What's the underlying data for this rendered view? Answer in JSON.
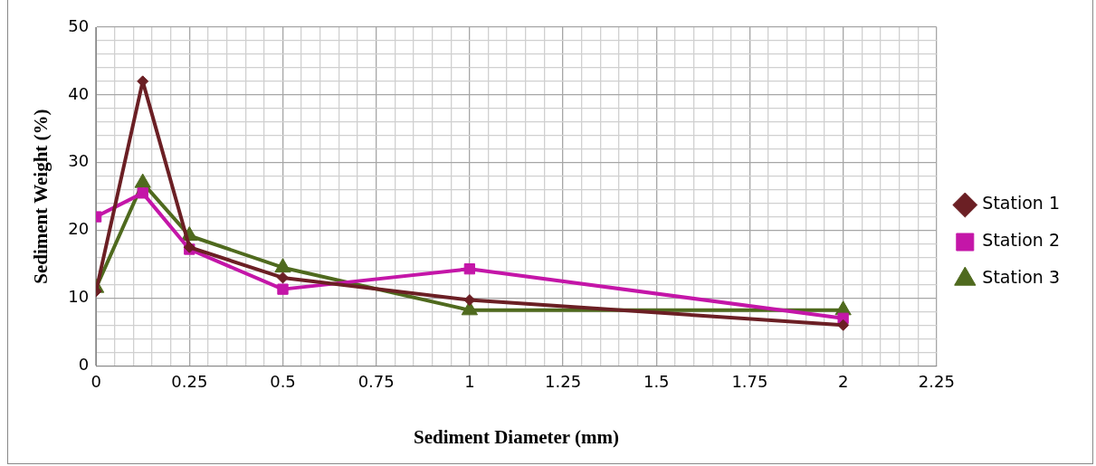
{
  "chart_data": {
    "type": "line",
    "xlabel": "Sediment Diameter (mm)",
    "ylabel": "Sediment Weight (%)",
    "x": [
      0,
      0.125,
      0.25,
      0.5,
      1,
      2
    ],
    "series": [
      {
        "name": "Station 1",
        "color": "#6b1f24",
        "marker": "diamond",
        "values": [
          11,
          42,
          17.5,
          13,
          9.7,
          6
        ]
      },
      {
        "name": "Station 2",
        "color": "#c416a8",
        "marker": "square",
        "values": [
          22,
          25.5,
          17.2,
          11.3,
          14.3,
          7
        ]
      },
      {
        "name": "Station 3",
        "color": "#4f6a1e",
        "marker": "triangle",
        "values": [
          11.5,
          27,
          19.2,
          14.5,
          8.2,
          8.2
        ]
      }
    ],
    "xlim": [
      0,
      2.25
    ],
    "xticks": [
      0,
      {
        "value": 0.05,
        "label": null
      },
      {
        "value": 0.1,
        "label": null
      },
      {
        "value": 0.15,
        "label": null
      },
      {
        "value": 0.2,
        "label": null
      },
      0.25,
      {
        "value": 0.3,
        "label": null
      },
      {
        "value": 0.35,
        "label": null
      },
      {
        "value": 0.4,
        "label": null
      },
      {
        "value": 0.45,
        "label": null
      },
      0.5,
      {
        "value": 0.55,
        "label": null
      },
      {
        "value": 0.6,
        "label": null
      },
      {
        "value": 0.65,
        "label": null
      },
      {
        "value": 0.7,
        "label": null
      },
      0.75,
      {
        "value": 0.8,
        "label": null
      },
      {
        "value": 0.85,
        "label": null
      },
      {
        "value": 0.9,
        "label": null
      },
      {
        "value": 0.95,
        "label": null
      },
      1,
      {
        "value": 1.05,
        "label": null
      },
      {
        "value": 1.1,
        "label": null
      },
      {
        "value": 1.15,
        "label": null
      },
      {
        "value": 1.2,
        "label": null
      },
      1.25,
      {
        "value": 1.3,
        "label": null
      },
      {
        "value": 1.35,
        "label": null
      },
      {
        "value": 1.4,
        "label": null
      },
      {
        "value": 1.45,
        "label": null
      },
      1.5,
      {
        "value": 1.55,
        "label": null
      },
      {
        "value": 1.6,
        "label": null
      },
      {
        "value": 1.65,
        "label": null
      },
      {
        "value": 1.7,
        "label": null
      },
      1.75,
      {
        "value": 1.8,
        "label": null
      },
      {
        "value": 1.85,
        "label": null
      },
      {
        "value": 1.9,
        "label": null
      },
      {
        "value": 1.95,
        "label": null
      },
      2,
      {
        "value": 2.05,
        "label": null
      },
      {
        "value": 2.1,
        "label": null
      },
      {
        "value": 2.15,
        "label": null
      },
      {
        "value": 2.2,
        "label": null
      },
      2.25
    ],
    "ylim": [
      0,
      50
    ],
    "yticks": [
      0,
      {
        "value": 2,
        "label": null
      },
      {
        "value": 4,
        "label": null
      },
      {
        "value": 6,
        "label": null
      },
      {
        "value": 8,
        "label": null
      },
      10,
      {
        "value": 12,
        "label": null
      },
      {
        "value": 14,
        "label": null
      },
      {
        "value": 16,
        "label": null
      },
      {
        "value": 18,
        "label": null
      },
      20,
      {
        "value": 22,
        "label": null
      },
      {
        "value": 24,
        "label": null
      },
      {
        "value": 26,
        "label": null
      },
      {
        "value": 28,
        "label": null
      },
      30,
      {
        "value": 32,
        "label": null
      },
      {
        "value": 34,
        "label": null
      },
      {
        "value": 36,
        "label": null
      },
      {
        "value": 38,
        "label": null
      },
      40,
      {
        "value": 42,
        "label": null
      },
      {
        "value": 44,
        "label": null
      },
      {
        "value": 46,
        "label": null
      },
      {
        "value": 48,
        "label": null
      },
      50
    ],
    "grid": true,
    "legend": "right",
    "line_style": "solid"
  }
}
